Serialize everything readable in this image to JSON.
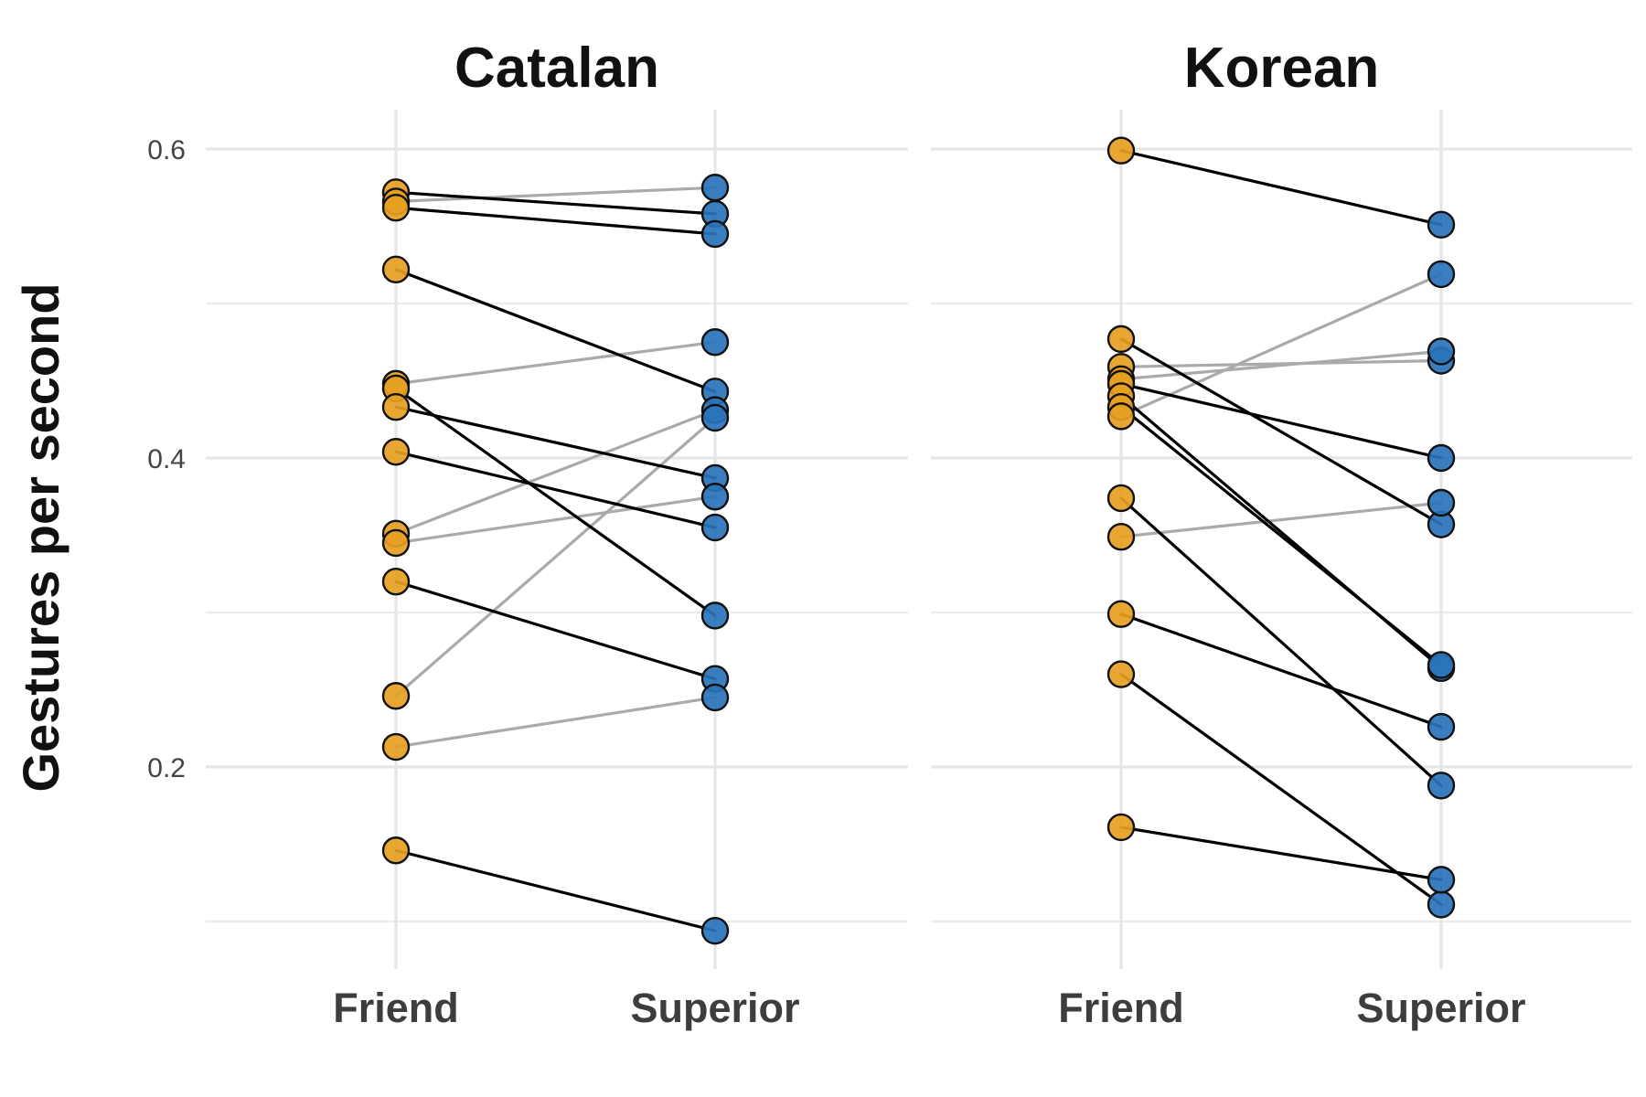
{
  "chart_data": {
    "type": "line",
    "ylabel": "Gestures per second",
    "xlabel": "",
    "x_categories": [
      "Friend",
      "Superior"
    ],
    "ylim": [
      0.1,
      0.62
    ],
    "y_ticks": [
      0.2,
      0.4,
      0.6
    ],
    "y_tick_labels": [
      "0.2",
      "0.4",
      "0.6"
    ],
    "grid": true,
    "legend": "none",
    "colors": {
      "friend": "#E69F22",
      "superior": "#2A73BA",
      "decrease_line": "#000000",
      "increase_line": "#AAAAAA"
    },
    "panels": [
      {
        "title": "Catalan",
        "pairs": [
          {
            "friend": 0.572,
            "superior": 0.558
          },
          {
            "friend": 0.566,
            "superior": 0.575
          },
          {
            "friend": 0.562,
            "superior": 0.545
          },
          {
            "friend": 0.522,
            "superior": 0.443
          },
          {
            "friend": 0.448,
            "superior": 0.475
          },
          {
            "friend": 0.445,
            "superior": 0.298
          },
          {
            "friend": 0.433,
            "superior": 0.387
          },
          {
            "friend": 0.404,
            "superior": 0.355
          },
          {
            "friend": 0.351,
            "superior": 0.431
          },
          {
            "friend": 0.345,
            "superior": 0.375
          },
          {
            "friend": 0.32,
            "superior": 0.257
          },
          {
            "friend": 0.246,
            "superior": 0.426
          },
          {
            "friend": 0.213,
            "superior": 0.245
          },
          {
            "friend": 0.146,
            "superior": 0.094
          }
        ]
      },
      {
        "title": "Korean",
        "pairs": [
          {
            "friend": 0.599,
            "superior": 0.551
          },
          {
            "friend": 0.477,
            "superior": 0.357
          },
          {
            "friend": 0.459,
            "superior": 0.463
          },
          {
            "friend": 0.451,
            "superior": 0.469
          },
          {
            "friend": 0.448,
            "superior": 0.4
          },
          {
            "friend": 0.44,
            "superior": 0.264
          },
          {
            "friend": 0.433,
            "superior": 0.266
          },
          {
            "friend": 0.427,
            "superior": 0.519
          },
          {
            "friend": 0.374,
            "superior": 0.188
          },
          {
            "friend": 0.349,
            "superior": 0.371
          },
          {
            "friend": 0.299,
            "superior": 0.226
          },
          {
            "friend": 0.26,
            "superior": 0.111
          },
          {
            "friend": 0.161,
            "superior": 0.127
          }
        ]
      }
    ]
  }
}
